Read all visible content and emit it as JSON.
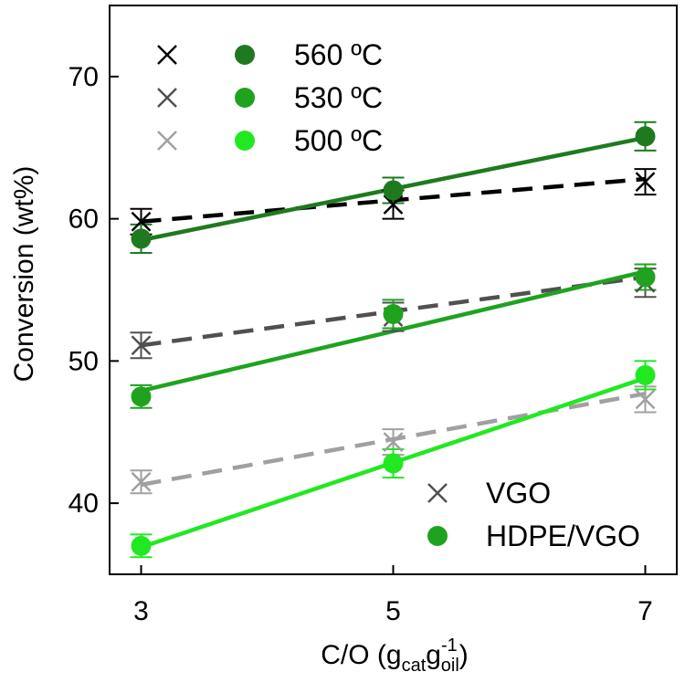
{
  "chart_data": {
    "type": "scatter",
    "xlabel": "C/O (g",
    "xlabel_sub1": "cat",
    "xlabel_mid": "g",
    "xlabel_sup": "-1",
    "xlabel_sub2": "oil",
    "xlabel_end": ")",
    "ylabel": "Conversion (wt%)",
    "xlim": [
      2.75,
      7.25
    ],
    "ylim": [
      35,
      75
    ],
    "xticks": [
      3,
      5,
      7
    ],
    "yticks": [
      40,
      50,
      60,
      70
    ],
    "series": [
      {
        "name": "VGO 560 ºC",
        "feed": "VGO",
        "temperature": "560 ºC",
        "marker": "x",
        "color": "#000000",
        "line": "dashed",
        "x": [
          3,
          5,
          7
        ],
        "y": [
          59.8,
          61.0,
          62.6
        ],
        "err": [
          0.9,
          1.0,
          0.9
        ],
        "fit": [
          59.8,
          62.8
        ]
      },
      {
        "name": "HDPE/VGO 560 ºC",
        "feed": "HDPE/VGO",
        "temperature": "560 ºC",
        "marker": "o",
        "color": "#1f7a1f",
        "line": "solid",
        "x": [
          3,
          5,
          7
        ],
        "y": [
          58.6,
          62.0,
          65.8
        ],
        "err": [
          1.0,
          0.9,
          1.0
        ],
        "fit": [
          58.5,
          65.7
        ]
      },
      {
        "name": "VGO 530 ºC",
        "feed": "VGO",
        "temperature": "530 ºC",
        "marker": "x",
        "color": "#505050",
        "line": "dashed",
        "x": [
          3,
          5,
          7
        ],
        "y": [
          51.1,
          53.1,
          55.5
        ],
        "err": [
          0.9,
          1.0,
          1.0
        ],
        "fit": [
          51.1,
          55.9
        ]
      },
      {
        "name": "HDPE/VGO 530 ºC",
        "feed": "HDPE/VGO",
        "temperature": "530 ºC",
        "marker": "o",
        "color": "#1fa31f",
        "line": "solid",
        "x": [
          3,
          5,
          7
        ],
        "y": [
          47.5,
          53.3,
          55.9
        ],
        "err": [
          0.8,
          1.0,
          0.9
        ],
        "fit": [
          47.9,
          56.3
        ]
      },
      {
        "name": "VGO 500 ºC",
        "feed": "VGO",
        "temperature": "500 ºC",
        "marker": "x",
        "color": "#a0a0a0",
        "line": "dashed",
        "x": [
          3,
          5,
          7
        ],
        "y": [
          41.5,
          44.3,
          47.3
        ],
        "err": [
          0.8,
          0.9,
          0.9
        ],
        "fit": [
          41.3,
          47.7
        ]
      },
      {
        "name": "HDPE/VGO 500 ºC",
        "feed": "HDPE/VGO",
        "temperature": "500 ºC",
        "marker": "o",
        "color": "#22e822",
        "line": "solid",
        "x": [
          3,
          5,
          7
        ],
        "y": [
          37.0,
          42.8,
          49.0
        ],
        "err": [
          0.8,
          1.0,
          1.0
        ],
        "fit": [
          36.9,
          48.8
        ]
      }
    ],
    "legend_temperature": {
      "position": "top-left",
      "entries": [
        {
          "label": "560 ºC",
          "x_color": "#000000",
          "o_color": "#1f7a1f"
        },
        {
          "label": "530 ºC",
          "x_color": "#505050",
          "o_color": "#1fa31f"
        },
        {
          "label": "500 ºC",
          "x_color": "#a0a0a0",
          "o_color": "#22e822"
        }
      ]
    },
    "legend_feed": {
      "position": "bottom-right",
      "entries": [
        {
          "label": "VGO",
          "marker": "x",
          "color": "#505050"
        },
        {
          "label": "HDPE/VGO",
          "marker": "o",
          "color": "#1fa31f"
        }
      ]
    }
  }
}
